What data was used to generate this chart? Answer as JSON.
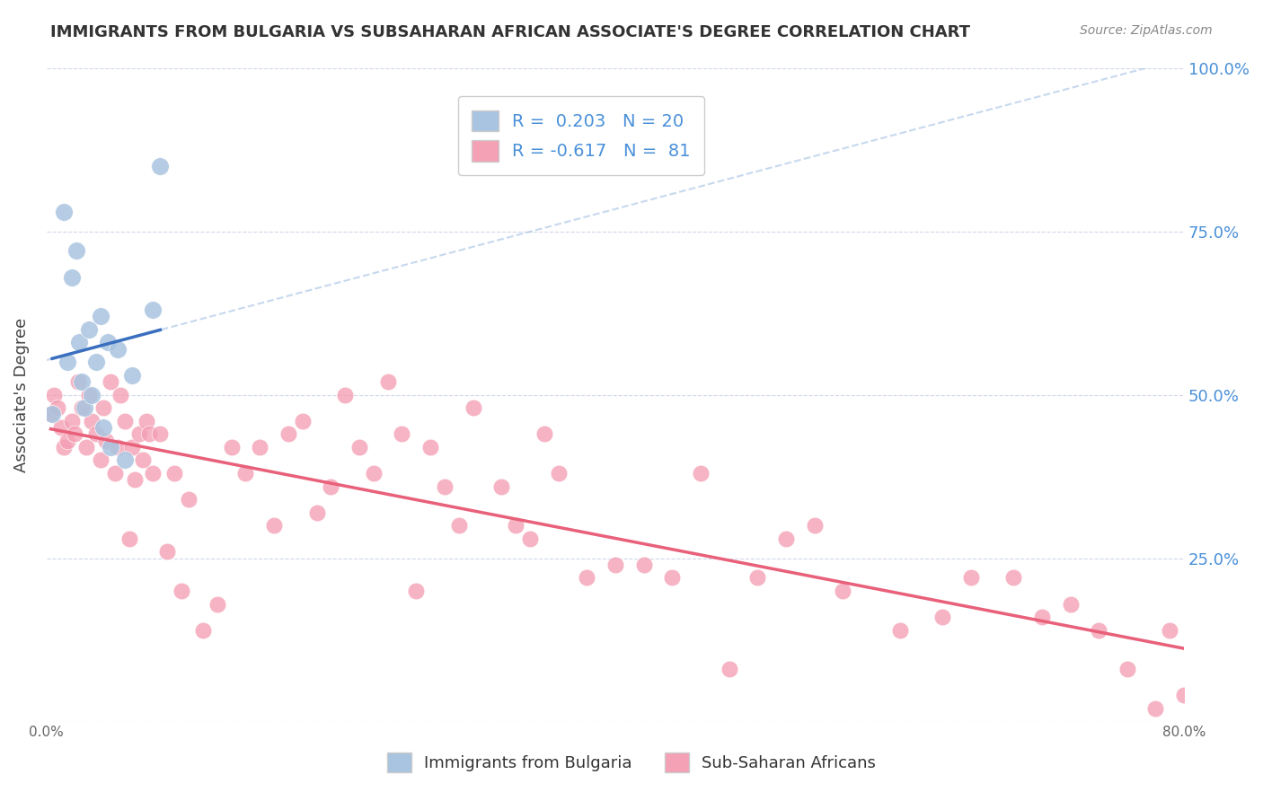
{
  "title": "IMMIGRANTS FROM BULGARIA VS SUBSAHARAN AFRICAN ASSOCIATE'S DEGREE CORRELATION CHART",
  "source": "Source: ZipAtlas.com",
  "ylabel": "Associate's Degree",
  "legend_label_blue": "Immigrants from Bulgaria",
  "legend_label_pink": "Sub-Saharan Africans",
  "R_blue": 0.203,
  "N_blue": 20,
  "R_pink": -0.617,
  "N_pink": 81,
  "blue_color": "#a8c4e0",
  "blue_line_color": "#3a6fbf",
  "blue_dash_color": "#b0c8e8",
  "pink_color": "#f4a0b5",
  "pink_line_color": "#e8607a",
  "label_color": "#4a90d9",
  "background_color": "#ffffff",
  "blue_x": [
    0.4,
    1.2,
    1.5,
    1.8,
    2.1,
    2.3,
    2.5,
    2.7,
    3.0,
    3.2,
    3.5,
    3.8,
    4.0,
    4.3,
    4.5,
    5.0,
    5.5,
    6.0,
    7.5,
    8.0
  ],
  "blue_y": [
    47,
    78,
    55,
    68,
    72,
    58,
    52,
    48,
    60,
    50,
    55,
    62,
    45,
    58,
    42,
    57,
    40,
    53,
    63,
    85
  ],
  "pink_x": [
    0.3,
    0.5,
    0.8,
    1.0,
    1.2,
    1.5,
    1.8,
    2.0,
    2.2,
    2.5,
    2.8,
    3.0,
    3.2,
    3.5,
    3.8,
    4.0,
    4.2,
    4.5,
    4.8,
    5.0,
    5.2,
    5.5,
    5.8,
    6.0,
    6.2,
    6.5,
    6.8,
    7.0,
    7.2,
    7.5,
    8.0,
    8.5,
    9.0,
    9.5,
    10.0,
    11.0,
    12.0,
    13.0,
    14.0,
    15.0,
    16.0,
    17.0,
    18.0,
    19.0,
    20.0,
    21.0,
    22.0,
    23.0,
    24.0,
    25.0,
    26.0,
    27.0,
    28.0,
    29.0,
    30.0,
    32.0,
    33.0,
    34.0,
    35.0,
    36.0,
    38.0,
    40.0,
    42.0,
    44.0,
    46.0,
    48.0,
    50.0,
    52.0,
    54.0,
    56.0,
    60.0,
    63.0,
    65.0,
    68.0,
    70.0,
    72.0,
    74.0,
    76.0,
    78.0,
    79.0,
    80.0
  ],
  "pink_y": [
    47,
    50,
    48,
    45,
    42,
    43,
    46,
    44,
    52,
    48,
    42,
    50,
    46,
    44,
    40,
    48,
    43,
    52,
    38,
    42,
    50,
    46,
    28,
    42,
    37,
    44,
    40,
    46,
    44,
    38,
    44,
    26,
    38,
    20,
    34,
    14,
    18,
    42,
    38,
    42,
    30,
    44,
    46,
    32,
    36,
    50,
    42,
    38,
    52,
    44,
    20,
    42,
    36,
    30,
    48,
    36,
    30,
    28,
    44,
    38,
    22,
    24,
    24,
    22,
    38,
    8,
    22,
    28,
    30,
    20,
    14,
    16,
    22,
    22,
    16,
    18,
    14,
    8,
    2,
    14,
    4
  ],
  "xlim": [
    0,
    80
  ],
  "ylim": [
    0,
    100
  ]
}
